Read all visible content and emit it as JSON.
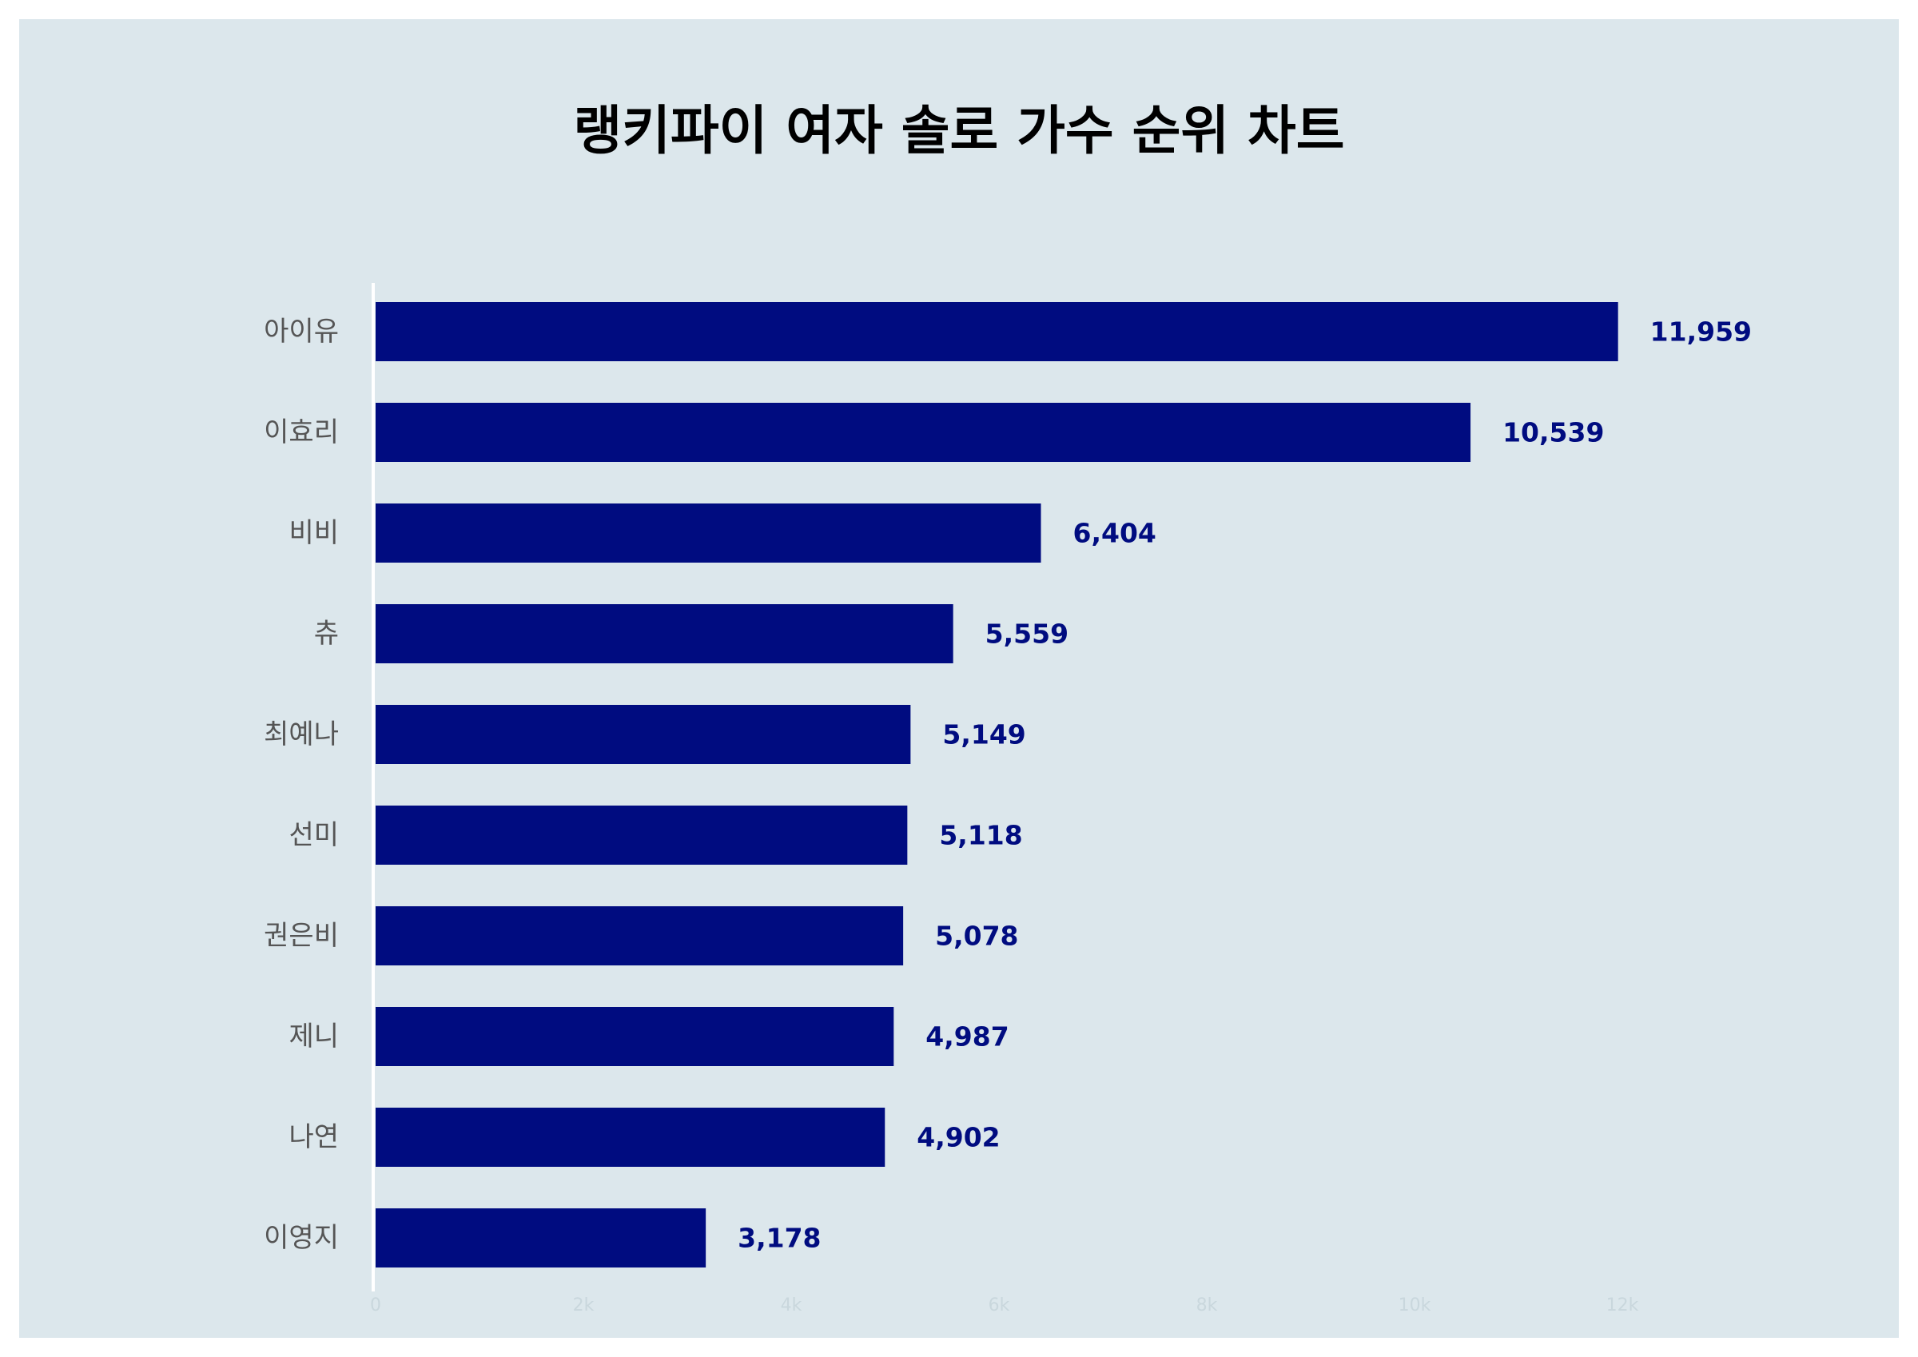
{
  "chart_data": {
    "type": "bar",
    "orientation": "horizontal",
    "title": "랭키파이 여자 솔로 가수 순위 차트",
    "categories": [
      "아이유",
      "이효리",
      "비비",
      "츄",
      "최예나",
      "선미",
      "권은비",
      "제니",
      "나연",
      "이영지"
    ],
    "values": [
      11959,
      10539,
      6404,
      5559,
      5149,
      5118,
      5078,
      4987,
      4902,
      3178
    ],
    "value_labels": [
      "11,959",
      "10,539",
      "6,404",
      "5,559",
      "5,149",
      "5,118",
      "5,078",
      "4,987",
      "4,902",
      "3,178"
    ],
    "xlim": [
      0,
      12000
    ],
    "x_ticks": [
      "0",
      "2k",
      "4k",
      "6k",
      "8k",
      "10k",
      "12k"
    ],
    "x_tick_values": [
      0,
      2000,
      4000,
      6000,
      8000,
      10000,
      12000
    ],
    "grid": false,
    "legend": "none",
    "colors": {
      "bar": "#000c80",
      "value_label": "#000c80",
      "background": "#dce7ec",
      "axis_line": "#ffffff"
    }
  }
}
